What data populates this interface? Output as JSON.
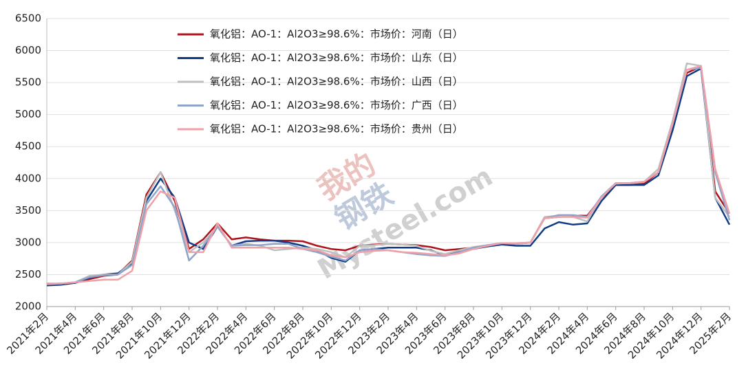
{
  "chart_data": {
    "type": "line",
    "categories": [
      "2021年2月",
      null,
      "2021年4月",
      null,
      "2021年6月",
      null,
      "2021年8月",
      null,
      "2021年10月",
      null,
      "2021年12月",
      null,
      "2022年2月",
      null,
      "2022年4月",
      null,
      "2022年6月",
      null,
      "2022年8月",
      null,
      "2022年10月",
      null,
      "2022年12月",
      null,
      "2023年2月",
      null,
      "2023年4月",
      null,
      "2023年6月",
      null,
      "2023年8月",
      null,
      "2023年10月",
      null,
      "2023年12月",
      null,
      "2024年2月",
      null,
      "2024年4月",
      null,
      "2024年6月",
      null,
      "2024年8月",
      null,
      "2024年10月",
      null,
      "2024年12月",
      null,
      "2025年2月"
    ],
    "series": [
      {
        "name": "氧化铝：AO-1：Al2O3≥98.6%：市场价：河南（日）",
        "color": "#b0121b",
        "values": [
          2350,
          2360,
          2370,
          2430,
          2480,
          2500,
          2720,
          3750,
          4100,
          3650,
          2900,
          3050,
          3300,
          3050,
          3080,
          3050,
          3030,
          3030,
          3020,
          2950,
          2900,
          2880,
          2950,
          2970,
          2980,
          2970,
          2960,
          2930,
          2880,
          2900,
          2920,
          2950,
          2980,
          2980,
          3000,
          3380,
          3400,
          3420,
          3420,
          3700,
          3900,
          3900,
          3920,
          4100,
          4800,
          5650,
          5750,
          3800,
          3450
        ]
      },
      {
        "name": "氧化铝：AO-1：Al2O3≥98.6%：市场价：山东（日）",
        "color": "#0f3b86",
        "values": [
          2330,
          2340,
          2370,
          2450,
          2500,
          2520,
          2680,
          3650,
          4000,
          3700,
          3000,
          2900,
          3250,
          2950,
          3020,
          3030,
          3030,
          3000,
          2950,
          2880,
          2760,
          2700,
          2880,
          2900,
          2920,
          2920,
          2920,
          2880,
          2800,
          2860,
          2900,
          2940,
          2970,
          2950,
          2950,
          3220,
          3320,
          3280,
          3300,
          3650,
          3900,
          3900,
          3900,
          4050,
          4750,
          5600,
          5720,
          3700,
          3280
        ]
      },
      {
        "name": "氧化铝：AO-1：Al2O3≥98.6%：市场价：山西（日）",
        "color": "#bfbfbf",
        "values": [
          2350,
          2360,
          2380,
          2480,
          2500,
          2500,
          2700,
          3700,
          4100,
          3500,
          2850,
          3000,
          3250,
          2950,
          2980,
          2950,
          2880,
          2900,
          2920,
          2900,
          2850,
          2770,
          2950,
          2960,
          2980,
          2970,
          2950,
          2870,
          2820,
          2880,
          2930,
          2960,
          2990,
          2980,
          3000,
          3400,
          3420,
          3400,
          3330,
          3720,
          3920,
          3930,
          3950,
          4150,
          4900,
          5800,
          5760,
          3700,
          3400
        ]
      },
      {
        "name": "氧化铝：AO-1：Al2O3≥98.6%：市场价：广西（日）",
        "color": "#8ea4c8",
        "values": [
          2360,
          2360,
          2380,
          2460,
          2490,
          2500,
          2650,
          3600,
          3880,
          3550,
          2720,
          2950,
          3250,
          2950,
          2960,
          2960,
          2980,
          2980,
          2900,
          2850,
          2780,
          2720,
          2880,
          2900,
          2880,
          2850,
          2820,
          2800,
          2790,
          2850,
          2920,
          2960,
          2990,
          2990,
          3000,
          3380,
          3430,
          3430,
          3400,
          3720,
          3930,
          3930,
          3950,
          4100,
          4850,
          5700,
          5730,
          4100,
          3350
        ]
      },
      {
        "name": "氧化铝：AO-1：Al2O3≥98.6%：市场价：贵州（日）",
        "color": "#f0a0a8",
        "values": [
          2350,
          2360,
          2380,
          2400,
          2420,
          2420,
          2560,
          3500,
          3800,
          3700,
          2850,
          2850,
          3300,
          2920,
          2920,
          2920,
          2920,
          2920,
          2900,
          2880,
          2800,
          2770,
          2850,
          2870,
          2880,
          2850,
          2840,
          2820,
          2800,
          2830,
          2900,
          2950,
          2990,
          2990,
          3000,
          3380,
          3400,
          3400,
          3390,
          3700,
          3930,
          3930,
          3950,
          4100,
          4850,
          5700,
          5760,
          4150,
          3450
        ]
      }
    ],
    "ylim": [
      2000,
      6500
    ],
    "yticks": [
      2000,
      2500,
      3000,
      3500,
      4000,
      4500,
      5000,
      5500,
      6000,
      6500
    ],
    "grid": true,
    "watermark": [
      "我的",
      "钢铁",
      "Mysteel.com"
    ]
  }
}
